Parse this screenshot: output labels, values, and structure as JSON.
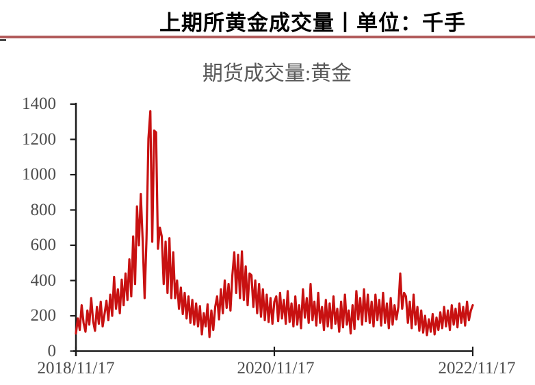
{
  "header": {
    "title": "上期所黄金成交量丨单位：千手",
    "divider_color": "#B15B5B"
  },
  "chart": {
    "title": "期货成交量:黄金"
  },
  "chart_data": {
    "type": "line",
    "title": "期货成交量:黄金",
    "unit": "千手",
    "line_color": "#C81111",
    "axis_color": "#1a1a1a",
    "x_start": "2018/11/17",
    "x_end": "2022/11/17",
    "x_tick_labels": [
      "2018/11/17",
      "2020/11/17",
      "2022/11/17"
    ],
    "y_tick_labels": [
      "1400",
      "1200",
      "1000",
      "800",
      "600",
      "400",
      "200",
      "0"
    ],
    "ylim": [
      0,
      1400
    ],
    "grid": false,
    "legend": false,
    "values": [
      100,
      185,
      120,
      260,
      160,
      110,
      230,
      150,
      300,
      170,
      115,
      250,
      155,
      280,
      140,
      210,
      285,
      175,
      320,
      200,
      420,
      240,
      350,
      215,
      405,
      260,
      440,
      290,
      520,
      310,
      650,
      380,
      820,
      600,
      890,
      620,
      300,
      640,
      1205,
      1360,
      620,
      1250,
      1240,
      580,
      700,
      650,
      380,
      620,
      330,
      640,
      300,
      560,
      300,
      400,
      240,
      360,
      210,
      330,
      185,
      310,
      160,
      290,
      150,
      270,
      140,
      255,
      95,
      215,
      140,
      265,
      80,
      230,
      120,
      250,
      310,
      180,
      350,
      215,
      400,
      245,
      380,
      230,
      430,
      560,
      330,
      545,
      300,
      565,
      290,
      480,
      260,
      440,
      430,
      250,
      400,
      215,
      380,
      195,
      350,
      175,
      320,
      165,
      300,
      155,
      280,
      310,
      170,
      330,
      185,
      290,
      155,
      340,
      165,
      270,
      140,
      310,
      150,
      260,
      130,
      350,
      190,
      300,
      160,
      380,
      175,
      280,
      145,
      330,
      160,
      250,
      120,
      290,
      140,
      270,
      130,
      310,
      155,
      240,
      110,
      280,
      135,
      320,
      150,
      230,
      100,
      260,
      125,
      340,
      180,
      300,
      150,
      350,
      170,
      320,
      160,
      280,
      140,
      320,
      175,
      290,
      145,
      330,
      160,
      270,
      130,
      300,
      150,
      260,
      180,
      250,
      440,
      240,
      330,
      310,
      160,
      280,
      130,
      320,
      150,
      250,
      115,
      230,
      105,
      200,
      90,
      180,
      110,
      210,
      95,
      190,
      120,
      220,
      130,
      250,
      140,
      230,
      120,
      260,
      150,
      240,
      135,
      270,
      160,
      250,
      145,
      280,
      175,
      230,
      260
    ]
  }
}
